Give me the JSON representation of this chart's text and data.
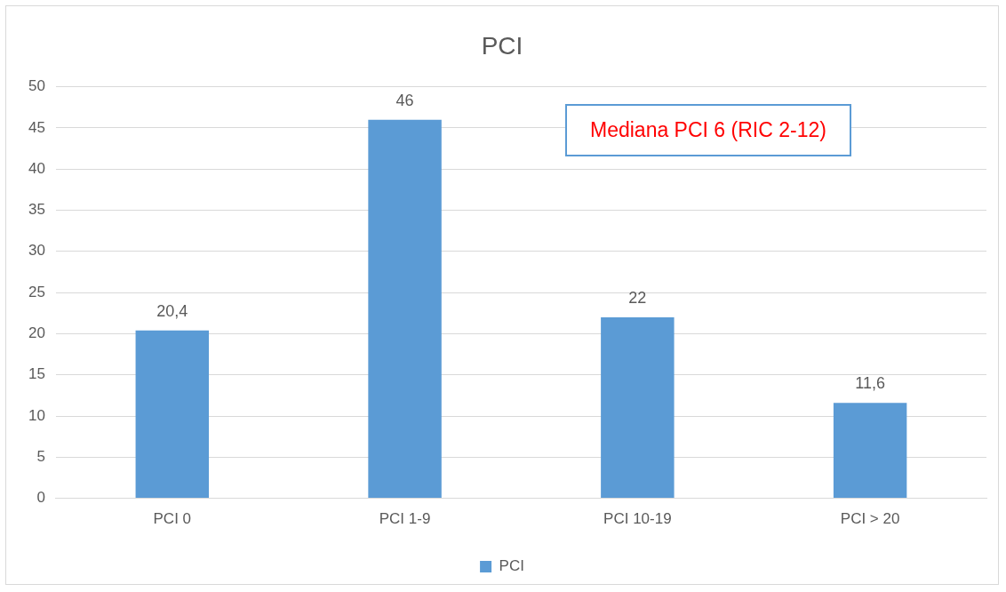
{
  "chart_data": {
    "type": "bar",
    "title": "PCI",
    "categories": [
      "PCI 0",
      "PCI 1-9",
      "PCI 10-19",
      "PCI > 20"
    ],
    "series": [
      {
        "name": "PCI",
        "color": "#5b9bd5",
        "values": [
          20.4,
          46,
          22,
          11.6
        ],
        "value_labels": [
          "20,4",
          "46",
          "22",
          "11,6"
        ]
      }
    ],
    "ylim": [
      0,
      50
    ],
    "yticks": [
      0,
      5,
      10,
      15,
      20,
      25,
      30,
      35,
      40,
      45,
      50
    ],
    "grid": "y",
    "legend": "bottom",
    "annotations": [
      "Mediana PCI 6 (RIC 2-12)"
    ]
  }
}
